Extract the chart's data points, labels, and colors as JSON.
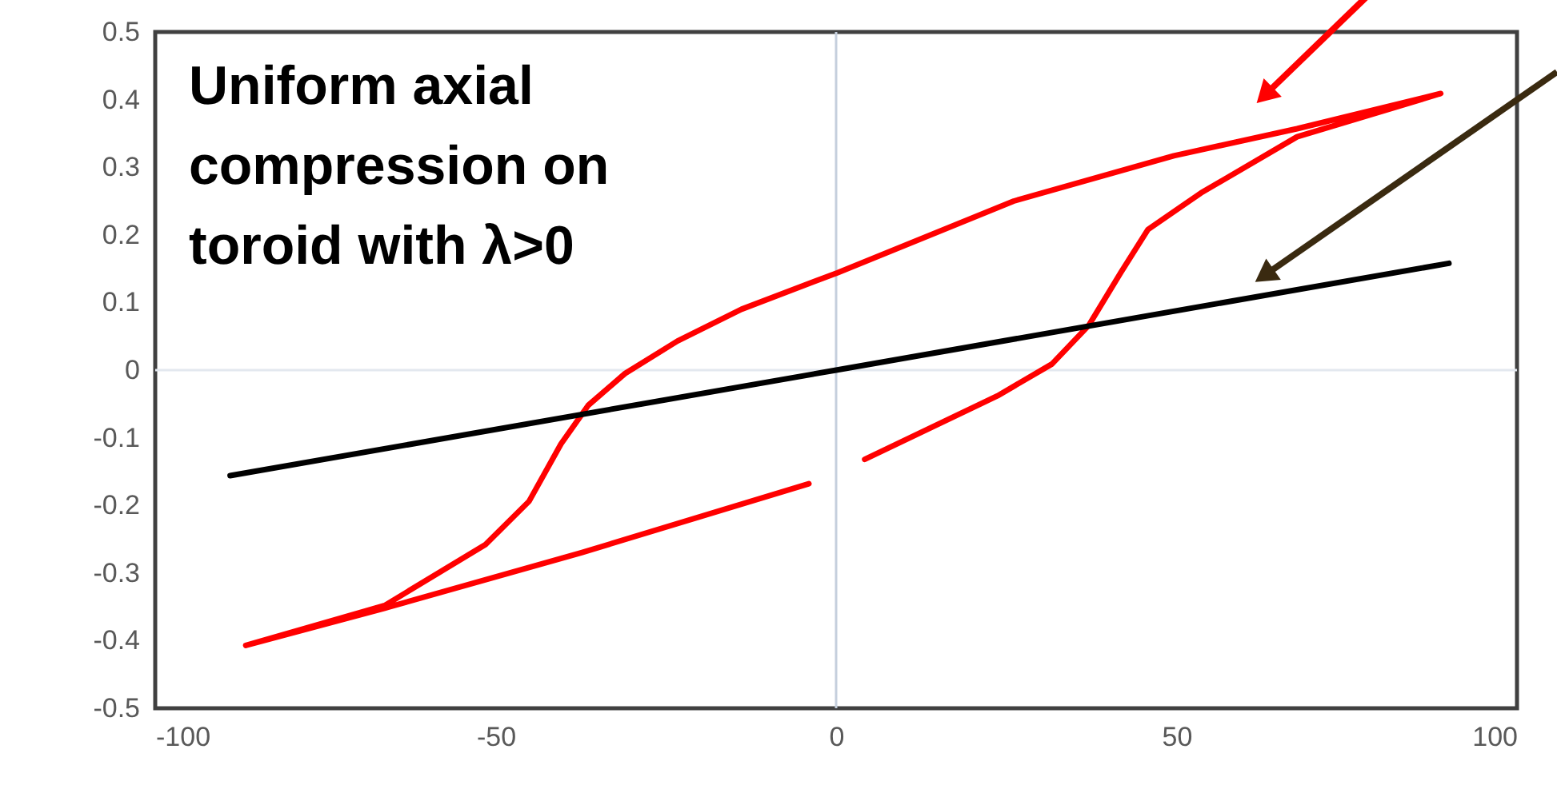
{
  "chart_data": {
    "type": "line",
    "x": [
      -89,
      0,
      90
    ],
    "series": [
      {
        "color": "#ff0000",
        "x": [
          -86.7,
          -66.3,
          -51.5,
          -45.1,
          -40.4,
          -36.4,
          -31,
          -23.3,
          -13.9,
          0.2,
          26.1,
          49.6,
          67.7,
          88.8,
          67.7,
          53.6,
          45.8,
          41.8,
          37.1,
          31.7,
          23.7,
          4.2,
          0,
          -4.0,
          -37.4,
          -66.3,
          -86.7
        ],
        "values": [
          -0.407,
          -0.348,
          -0.258,
          -0.194,
          -0.109,
          -0.052,
          -0.005,
          0.043,
          0.09,
          0.144,
          0.25,
          0.317,
          0.357,
          0.409,
          0.345,
          0.262,
          0.208,
          0.144,
          0.066,
          0.009,
          -0.038,
          -0.132,
          null,
          -0.168,
          -0.27,
          -0.352,
          -0.407
        ]
      },
      {
        "color": "#000000",
        "values": [
          -0.156,
          0,
          0.158
        ]
      }
    ],
    "xlim": [
      -100,
      100
    ],
    "xticks": [
      -100,
      -50,
      0,
      50,
      100
    ],
    "ylim": [
      -0.5,
      0.5
    ],
    "yticks": [
      -0.5,
      -0.4,
      -0.3,
      -0.2,
      -0.1,
      0,
      0.1,
      0.2,
      0.3,
      0.4,
      0.5
    ],
    "ref_lines": [
      {
        "axis": "x",
        "value": 0,
        "color": "#c5cfdd"
      },
      {
        "axis": "y",
        "value": 0,
        "color": "#e3e8ef"
      }
    ],
    "annotations": [
      "Uniform axial\ncompression on\ntoroid with λ>0"
    ],
    "grid": false,
    "marker": "none",
    "line_style": "solid"
  }
}
